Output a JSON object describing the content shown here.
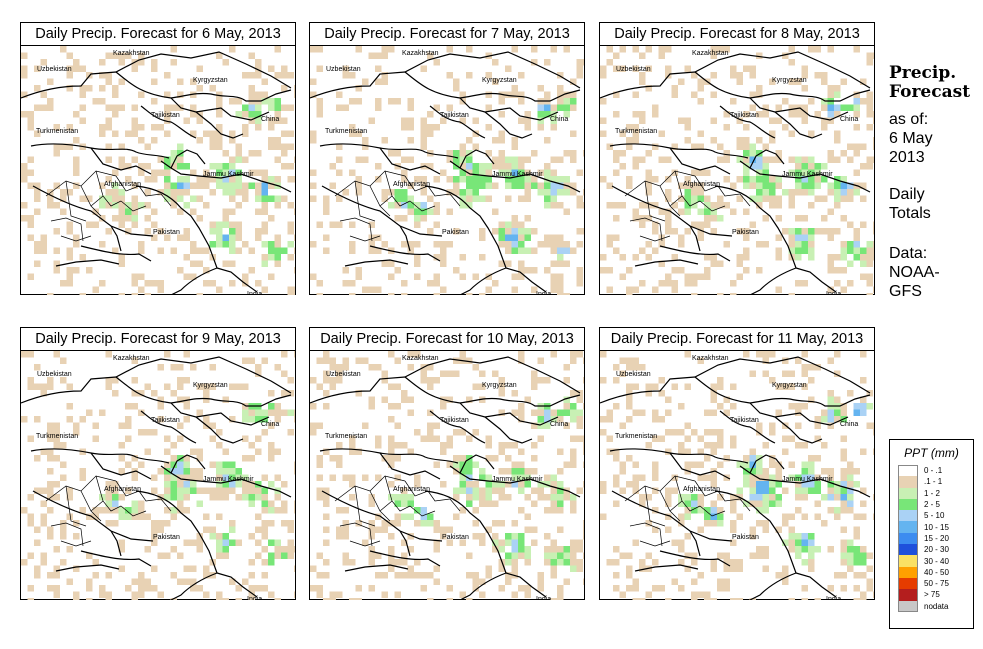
{
  "map_panels": [
    {
      "title": "Daily Precip. Forecast for  6 May, 2013",
      "seed": 11,
      "intensity": 0.9
    },
    {
      "title": "Daily Precip. Forecast for  7 May, 2013",
      "seed": 23,
      "intensity": 1.0
    },
    {
      "title": "Daily Precip. Forecast for  8 May, 2013",
      "seed": 37,
      "intensity": 0.95
    },
    {
      "title": "Daily Precip. Forecast for  9 May, 2013",
      "seed": 41,
      "intensity": 0.85
    },
    {
      "title": "Daily Precip. Forecast for  10 May, 2013",
      "seed": 53,
      "intensity": 0.9
    },
    {
      "title": "Daily Precip. Forecast for  11 May, 2013",
      "seed": 67,
      "intensity": 1.15
    }
  ],
  "country_labels": {
    "kazakhstan": "Kazakhstan",
    "uzbekistan": "Uzbekistan",
    "kyrgyzstan": "Kyrgyzstan",
    "tajikistan": "Tajikistan",
    "turkmenistan": "Turkmenistan",
    "china": "China",
    "afghanistan": "Afghanistan",
    "jammu_kashmir": "Jammu Kashmir",
    "pakistan": "Pakistan",
    "india": "India"
  },
  "sidebar": {
    "title_line1": "Precip.",
    "title_line2": "Forecast",
    "asof_line1": "as of:",
    "asof_line2": "6 May",
    "asof_line3": "2013",
    "totals_line1": "Daily",
    "totals_line2": "Totals",
    "data_line1": "Data:",
    "data_line2": "NOAA-",
    "data_line3": "GFS"
  },
  "legend": {
    "title": "PPT (mm)",
    "items": [
      {
        "label": "0 - .1",
        "color": "#ffffff"
      },
      {
        "label": ".1 - 1",
        "color": "#e8d2b4"
      },
      {
        "label": "1 - 2",
        "color": "#c8f0b4"
      },
      {
        "label": "2 - 5",
        "color": "#78e678"
      },
      {
        "label": "5 - 10",
        "color": "#aad2f5"
      },
      {
        "label": "10 - 15",
        "color": "#64b4f0"
      },
      {
        "label": "15 - 20",
        "color": "#3c8cf0"
      },
      {
        "label": "20 - 30",
        "color": "#1e50dc"
      },
      {
        "label": "30 - 40",
        "color": "#fae164"
      },
      {
        "label": "40 - 50",
        "color": "#ffa000"
      },
      {
        "label": "50 - 75",
        "color": "#e63c00"
      },
      {
        "label": "> 75",
        "color": "#b41e1e"
      },
      {
        "label": "nodata",
        "color": "#c8c8c8"
      }
    ]
  }
}
